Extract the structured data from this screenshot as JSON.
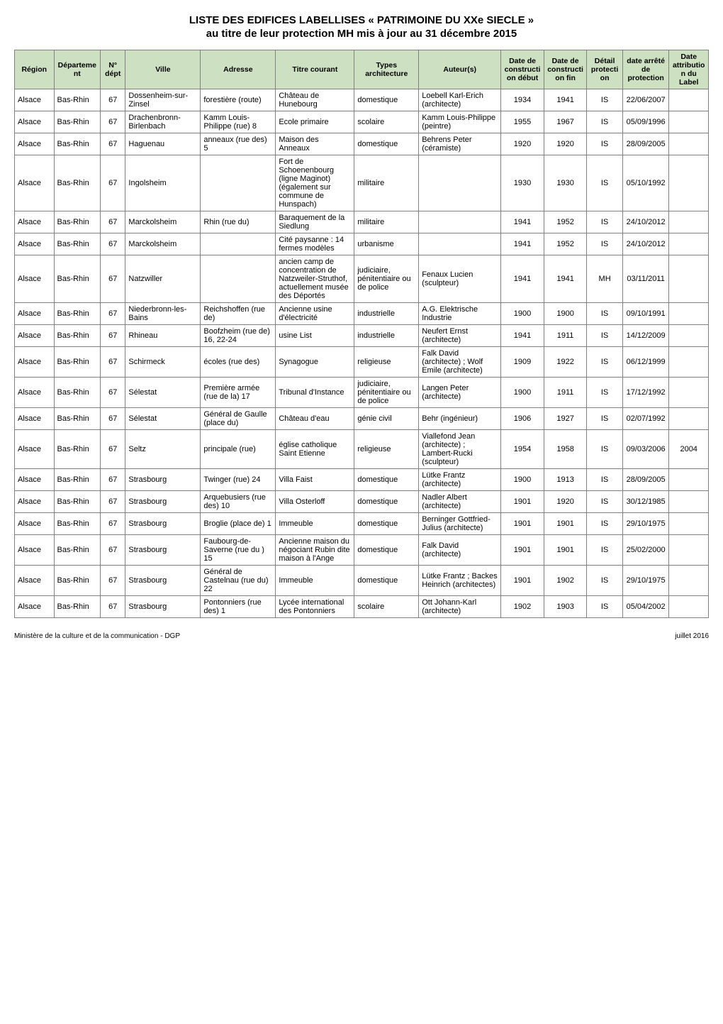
{
  "title_line1": "LISTE DES EDIFICES LABELLISES « PATRIMOINE DU XXe SIECLE »",
  "title_line2": "au titre de leur protection MH  mis à jour au 31 décembre 2015",
  "footer_left": "Ministère de la culture et de la communication - DGP",
  "footer_right": "juillet 2016",
  "header_bg": "#cde0c1",
  "border_color": "#808080",
  "columns": [
    {
      "key": "region",
      "label": "Région",
      "width": "5.5%",
      "align": "left"
    },
    {
      "key": "departement",
      "label": "Département",
      "width": "6.5%",
      "align": "left"
    },
    {
      "key": "ndept",
      "label": "N° dépt",
      "width": "3.5%",
      "align": "center"
    },
    {
      "key": "ville",
      "label": "Ville",
      "width": "10.5%",
      "align": "left"
    },
    {
      "key": "adresse",
      "label": "Adresse",
      "width": "10.5%",
      "align": "left"
    },
    {
      "key": "titre",
      "label": "Titre courant",
      "width": "11%",
      "align": "left"
    },
    {
      "key": "types",
      "label": "Types architecture",
      "width": "9%",
      "align": "left"
    },
    {
      "key": "auteurs",
      "label": "Auteur(s)",
      "width": "11.5%",
      "align": "left"
    },
    {
      "key": "debut",
      "label": "Date de construction début",
      "width": "6%",
      "align": "center"
    },
    {
      "key": "fin",
      "label": "Date de construction fin",
      "width": "6%",
      "align": "center"
    },
    {
      "key": "detail",
      "label": "Détail protection",
      "width": "5%",
      "align": "center"
    },
    {
      "key": "arrete",
      "label": "date arrêté de protection",
      "width": "6.5%",
      "align": "center"
    },
    {
      "key": "label",
      "label": "Date attribution du Label",
      "width": "5.5%",
      "align": "center"
    }
  ],
  "rows": [
    {
      "region": "Alsace",
      "departement": "Bas-Rhin",
      "ndept": "67",
      "ville": "Dossenheim-sur-Zinsel",
      "adresse": "forestière (route)",
      "titre": "Château de Hunebourg",
      "types": "domestique",
      "auteurs": "Loebell Karl-Erich (architecte)",
      "debut": "1934",
      "fin": "1941",
      "detail": "IS",
      "arrete": "22/06/2007",
      "label": ""
    },
    {
      "region": "Alsace",
      "departement": "Bas-Rhin",
      "ndept": "67",
      "ville": "Drachenbronn-Birlenbach",
      "adresse": "Kamm Louis-Philippe (rue) 8",
      "titre": "Ecole primaire",
      "types": "scolaire",
      "auteurs": "Kamm Louis-Philippe (peintre)",
      "debut": "1955",
      "fin": "1967",
      "detail": "IS",
      "arrete": "05/09/1996",
      "label": ""
    },
    {
      "region": "Alsace",
      "departement": "Bas-Rhin",
      "ndept": "67",
      "ville": "Haguenau",
      "adresse": "anneaux (rue des) 5",
      "titre": "Maison des Anneaux",
      "types": "domestique",
      "auteurs": "Behrens Peter (céramiste)",
      "debut": "1920",
      "fin": "1920",
      "detail": "IS",
      "arrete": "28/09/2005",
      "label": ""
    },
    {
      "region": "Alsace",
      "departement": "Bas-Rhin",
      "ndept": "67",
      "ville": "Ingolsheim",
      "adresse": "",
      "titre": "Fort de Schoenenbourg (ligne Maginot) (également sur commune de Hunspach)",
      "types": "militaire",
      "auteurs": "",
      "debut": "1930",
      "fin": "1930",
      "detail": "IS",
      "arrete": "05/10/1992",
      "label": ""
    },
    {
      "region": "Alsace",
      "departement": "Bas-Rhin",
      "ndept": "67",
      "ville": "Marckolsheim",
      "adresse": "Rhin (rue du)",
      "titre": "Baraquement de la Siedlung",
      "types": "militaire",
      "auteurs": "",
      "debut": "1941",
      "fin": "1952",
      "detail": "IS",
      "arrete": "24/10/2012",
      "label": ""
    },
    {
      "region": "Alsace",
      "departement": "Bas-Rhin",
      "ndept": "67",
      "ville": "Marckolsheim",
      "adresse": "",
      "titre": "Cité paysanne : 14 fermes modèles",
      "types": "urbanisme",
      "auteurs": "",
      "debut": "1941",
      "fin": "1952",
      "detail": "IS",
      "arrete": "24/10/2012",
      "label": ""
    },
    {
      "region": "Alsace",
      "departement": "Bas-Rhin",
      "ndept": "67",
      "ville": "Natzwiller",
      "adresse": "",
      "titre": "ancien camp de concentration de Natzweiler-Struthof, actuellement musée des Déportés",
      "types": "judiciaire, pénitentiaire ou de police",
      "auteurs": "Fenaux Lucien (sculpteur)",
      "debut": "1941",
      "fin": "1941",
      "detail": "MH",
      "arrete": "03/11/2011",
      "label": ""
    },
    {
      "region": "Alsace",
      "departement": "Bas-Rhin",
      "ndept": "67",
      "ville": "Niederbronn-les-Bains",
      "adresse": "Reichshoffen (rue de)",
      "titre": "Ancienne usine d'électricité",
      "types": "industrielle",
      "auteurs": "A.G. Elektrische Industrie",
      "debut": "1900",
      "fin": "1900",
      "detail": "IS",
      "arrete": "09/10/1991",
      "label": ""
    },
    {
      "region": "Alsace",
      "departement": "Bas-Rhin",
      "ndept": "67",
      "ville": "Rhineau",
      "adresse": "Boofzheim (rue de) 16, 22-24",
      "titre": "usine List",
      "types": "industrielle",
      "auteurs": "Neufert Ernst (architecte)",
      "debut": "1941",
      "fin": "1911",
      "detail": "IS",
      "arrete": "14/12/2009",
      "label": ""
    },
    {
      "region": "Alsace",
      "departement": "Bas-Rhin",
      "ndept": "67",
      "ville": "Schirmeck",
      "adresse": "écoles (rue des)",
      "titre": "Synagogue",
      "types": "religieuse",
      "auteurs": "Falk David (architecte) ; Wolf Emile (architecte)",
      "debut": "1909",
      "fin": "1922",
      "detail": "IS",
      "arrete": "06/12/1999",
      "label": ""
    },
    {
      "region": "Alsace",
      "departement": "Bas-Rhin",
      "ndept": "67",
      "ville": "Sélestat",
      "adresse": "Première armée (rue de la) 17",
      "titre": "Tribunal d'Instance",
      "types": "judiciaire, pénitentiaire ou de police",
      "auteurs": "Langen Peter (architecte)",
      "debut": "1900",
      "fin": "1911",
      "detail": "IS",
      "arrete": "17/12/1992",
      "label": ""
    },
    {
      "region": "Alsace",
      "departement": "Bas-Rhin",
      "ndept": "67",
      "ville": "Sélestat",
      "adresse": "Général de Gaulle (place du)",
      "titre": "Château d'eau",
      "types": "génie civil",
      "auteurs": "Behr (ingénieur)",
      "debut": "1906",
      "fin": "1927",
      "detail": "IS",
      "arrete": "02/07/1992",
      "label": ""
    },
    {
      "region": "Alsace",
      "departement": "Bas-Rhin",
      "ndept": "67",
      "ville": "Seltz",
      "adresse": "principale (rue)",
      "titre": "église catholique Saint Etienne",
      "types": "religieuse",
      "auteurs": "Viallefond Jean (architecte) ; Lambert-Rucki (sculpteur)",
      "debut": "1954",
      "fin": "1958",
      "detail": "IS",
      "arrete": "09/03/2006",
      "label": "2004"
    },
    {
      "region": "Alsace",
      "departement": "Bas-Rhin",
      "ndept": "67",
      "ville": "Strasbourg",
      "adresse": "Twinger (rue) 24",
      "titre": "Villa Faist",
      "types": "domestique",
      "auteurs": "Lütke Frantz (architecte)",
      "debut": "1900",
      "fin": "1913",
      "detail": "IS",
      "arrete": "28/09/2005",
      "label": ""
    },
    {
      "region": "Alsace",
      "departement": "Bas-Rhin",
      "ndept": "67",
      "ville": "Strasbourg",
      "adresse": "Arquebusiers (rue des) 10",
      "titre": "Villa Osterloff",
      "types": "domestique",
      "auteurs": "Nadler Albert (architecte)",
      "debut": "1901",
      "fin": "1920",
      "detail": "IS",
      "arrete": "30/12/1985",
      "label": ""
    },
    {
      "region": "Alsace",
      "departement": "Bas-Rhin",
      "ndept": "67",
      "ville": "Strasbourg",
      "adresse": "Broglie (place de) 1",
      "titre": "Immeuble",
      "types": "domestique",
      "auteurs": "Berninger Gottfried-Julius (architecte)",
      "debut": "1901",
      "fin": "1901",
      "detail": "IS",
      "arrete": "29/10/1975",
      "label": ""
    },
    {
      "region": "Alsace",
      "departement": "Bas-Rhin",
      "ndept": "67",
      "ville": "Strasbourg",
      "adresse": "Faubourg-de-Saverne (rue du ) 15",
      "titre": "Ancienne maison du négociant Rubin dite maison à l'Ange",
      "types": "domestique",
      "auteurs": "Falk David (architecte)",
      "debut": "1901",
      "fin": "1901",
      "detail": "IS",
      "arrete": "25/02/2000",
      "label": ""
    },
    {
      "region": "Alsace",
      "departement": "Bas-Rhin",
      "ndept": "67",
      "ville": "Strasbourg",
      "adresse": "Général de Castelnau (rue du) 22",
      "titre": "Immeuble",
      "types": "domestique",
      "auteurs": "Lütke Frantz ; Backes Heinrich (architectes)",
      "debut": "1901",
      "fin": "1902",
      "detail": "IS",
      "arrete": "29/10/1975",
      "label": ""
    },
    {
      "region": "Alsace",
      "departement": "Bas-Rhin",
      "ndept": "67",
      "ville": "Strasbourg",
      "adresse": "Pontonniers (rue des) 1",
      "titre": "Lycée international des Pontonniers",
      "types": "scolaire",
      "auteurs": "Ott Johann-Karl (architecte)",
      "debut": "1902",
      "fin": "1903",
      "detail": "IS",
      "arrete": "05/04/2002",
      "label": ""
    }
  ]
}
